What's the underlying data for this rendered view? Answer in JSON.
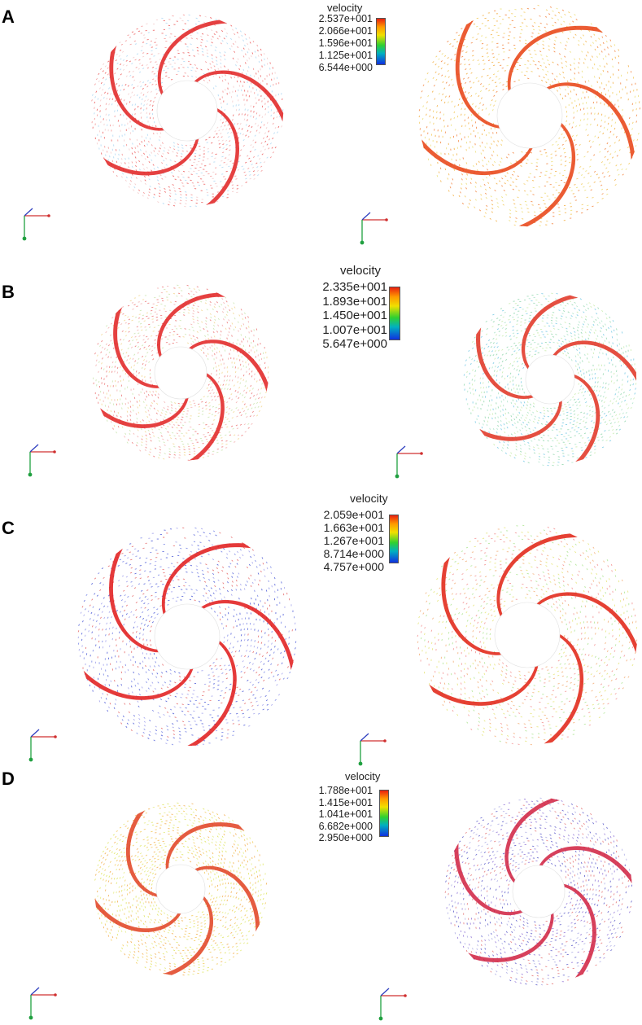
{
  "panels": [
    {
      "letter": "A",
      "legend": {
        "title": "velocity",
        "ticks": [
          "2.537e+001",
          "2.066e+001",
          "1.596e+001",
          "1.125e+001",
          "6.544e+000"
        ]
      },
      "left": {
        "palette": [
          "#e84040",
          "#f08080",
          "#f0c0c0",
          "#a0d0f0"
        ],
        "blade": "#e02020"
      },
      "right": {
        "palette": [
          "#f0a020",
          "#f0c040",
          "#e8d860",
          "#f07020"
        ],
        "blade": "#e84010"
      }
    },
    {
      "letter": "B",
      "legend": {
        "title": "velocity",
        "ticks": [
          "2.335e+001",
          "1.893e+001",
          "1.450e+001",
          "1.007e+001",
          "5.647e+000"
        ]
      },
      "left": {
        "palette": [
          "#f0a0a0",
          "#f0d080",
          "#c0e0a0",
          "#e86060"
        ],
        "blade": "#e02020"
      },
      "right": {
        "palette": [
          "#80d0a0",
          "#a0e0c0",
          "#60c0e0",
          "#c0e8a0"
        ],
        "blade": "#e03020"
      }
    },
    {
      "letter": "C",
      "legend": {
        "title": "velocity",
        "ticks": [
          "2.059e+001",
          "1.663e+001",
          "1.267e+001",
          "8.714e+000",
          "4.757e+000"
        ]
      },
      "left": {
        "palette": [
          "#3040d0",
          "#6070e0",
          "#e05050",
          "#9090e8"
        ],
        "blade": "#e01818"
      },
      "right": {
        "palette": [
          "#e0e060",
          "#f0a060",
          "#a0e080",
          "#f08080"
        ],
        "blade": "#e02010"
      }
    },
    {
      "letter": "D",
      "legend": {
        "title": "velocity",
        "ticks": [
          "1.788e+001",
          "1.415e+001",
          "1.041e+001",
          "6.682e+000",
          "2.950e+000"
        ]
      },
      "left": {
        "palette": [
          "#d8e040",
          "#f0c040",
          "#e0e870",
          "#f0a030"
        ],
        "blade": "#e04020"
      },
      "right": {
        "palette": [
          "#4040c0",
          "#8060d0",
          "#e06060",
          "#a0a0e0"
        ],
        "blade": "#d02040"
      }
    }
  ]
}
